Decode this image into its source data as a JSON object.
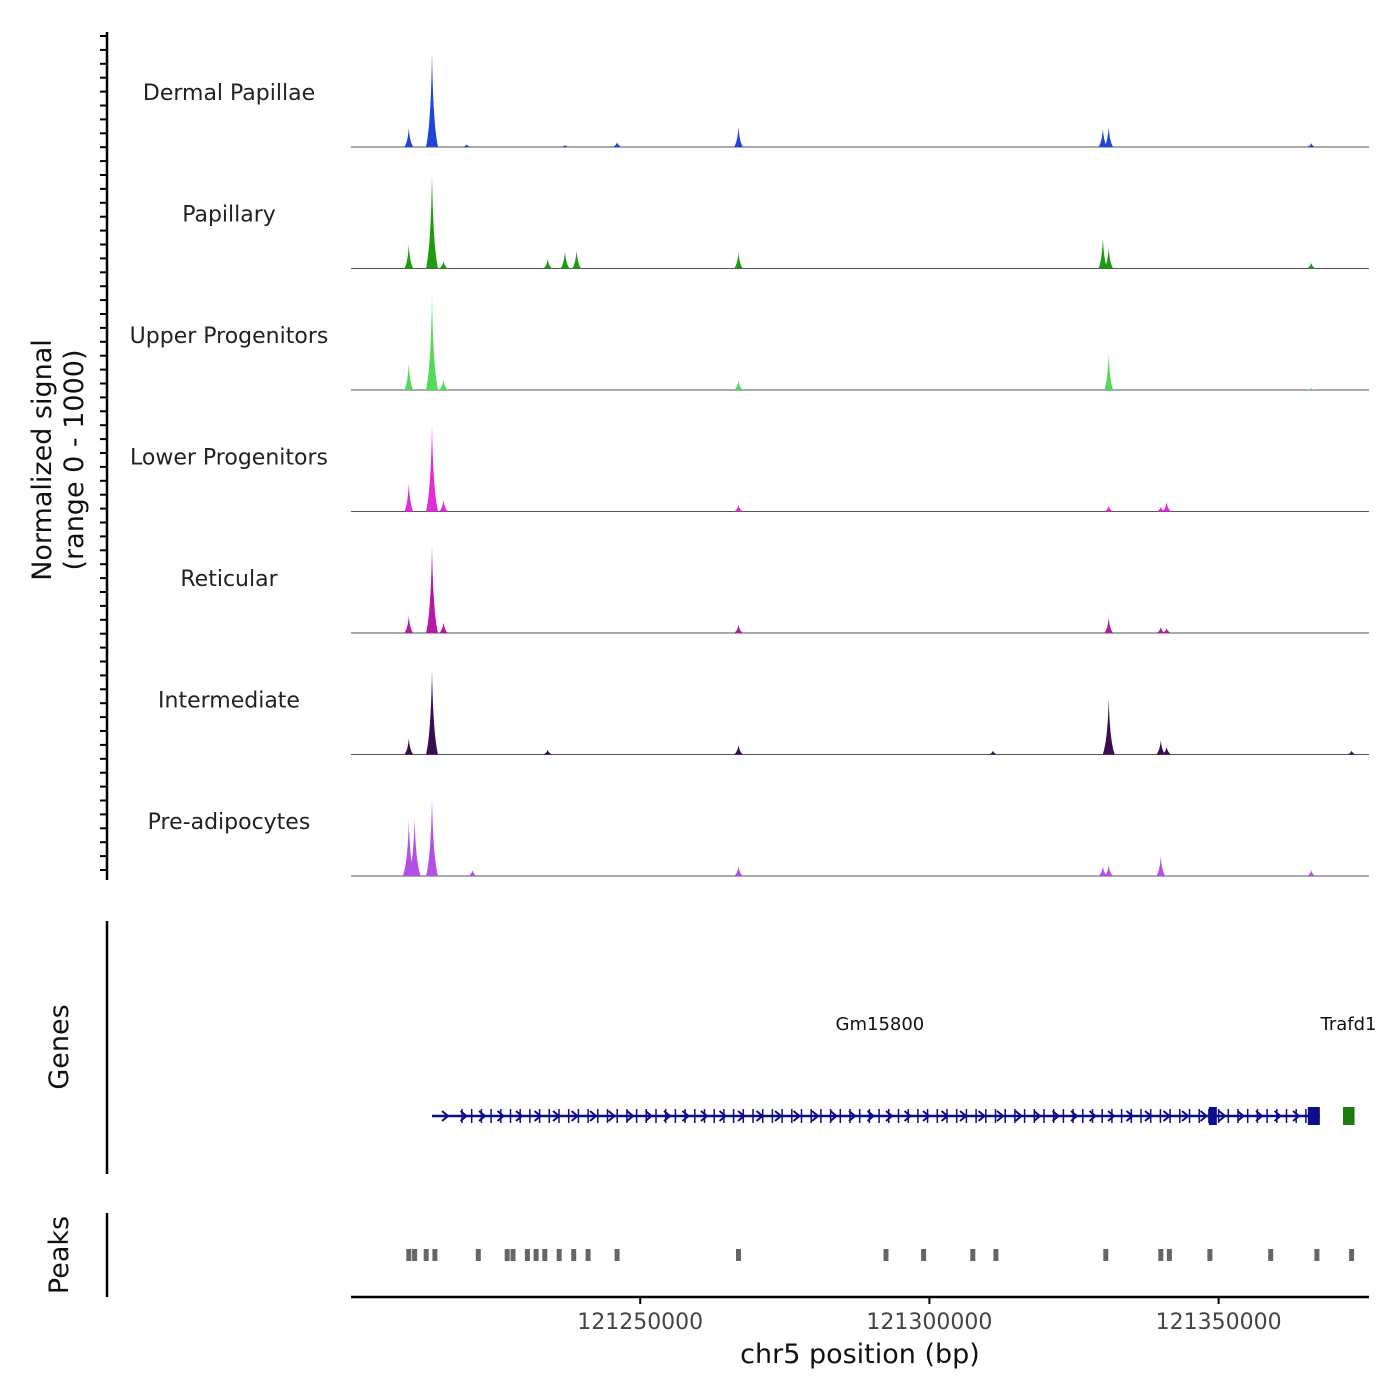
{
  "chart_data": {
    "type": "area",
    "title": "",
    "region": {
      "chromosome": "chr5",
      "start": 121200000,
      "end": 121376000
    },
    "xlabel": "chr5 position (bp)",
    "ylabel_line1": "Normalized signal",
    "ylabel_line2": "(range 0 - 1000)",
    "ylim": [
      0,
      1000
    ],
    "x_ticks": [
      {
        "value": 121250000,
        "label": "121250000"
      },
      {
        "value": 121300000,
        "label": "121300000"
      },
      {
        "value": 121350000,
        "label": "121350000"
      }
    ],
    "series": [
      {
        "name": "Dermal Papillae",
        "color": "#1f45d6",
        "peaks": [
          [
            121210000,
            200
          ],
          [
            121214000,
            1000
          ],
          [
            121220000,
            30
          ],
          [
            121237000,
            20
          ],
          [
            121246000,
            50
          ],
          [
            121267000,
            210
          ],
          [
            121330000,
            190
          ],
          [
            121331000,
            210
          ],
          [
            121366000,
            40
          ]
        ]
      },
      {
        "name": "Papillary",
        "color": "#1e9b12",
        "peaks": [
          [
            121210000,
            250
          ],
          [
            121214000,
            1000
          ],
          [
            121216000,
            80
          ],
          [
            121234000,
            100
          ],
          [
            121237000,
            180
          ],
          [
            121239000,
            190
          ],
          [
            121267000,
            170
          ],
          [
            121330000,
            320
          ],
          [
            121331000,
            220
          ],
          [
            121366000,
            60
          ]
        ]
      },
      {
        "name": "Upper Progenitors",
        "color": "#55d85c",
        "peaks": [
          [
            121210000,
            280
          ],
          [
            121214000,
            1000
          ],
          [
            121216000,
            110
          ],
          [
            121267000,
            100
          ],
          [
            121331000,
            380
          ],
          [
            121366000,
            20
          ]
        ]
      },
      {
        "name": "Lower Progenitors",
        "color": "#e22bd9",
        "peaks": [
          [
            121210000,
            300
          ],
          [
            121214000,
            920
          ],
          [
            121216000,
            120
          ],
          [
            121267000,
            70
          ],
          [
            121331000,
            60
          ],
          [
            121340000,
            50
          ],
          [
            121341000,
            100
          ]
        ]
      },
      {
        "name": "Reticular",
        "color": "#b51aa6",
        "peaks": [
          [
            121210000,
            180
          ],
          [
            121214000,
            920
          ],
          [
            121216000,
            110
          ],
          [
            121267000,
            90
          ],
          [
            121331000,
            160
          ],
          [
            121340000,
            60
          ],
          [
            121341000,
            50
          ]
        ]
      },
      {
        "name": "Intermediate",
        "color": "#3a0d52",
        "peaks": [
          [
            121210000,
            170
          ],
          [
            121214000,
            900
          ],
          [
            121234000,
            50
          ],
          [
            121267000,
            100
          ],
          [
            121311000,
            40
          ],
          [
            121331000,
            590
          ],
          [
            121340000,
            150
          ],
          [
            121341000,
            80
          ],
          [
            121373000,
            40
          ]
        ]
      },
      {
        "name": "Pre-adipocytes",
        "color": "#b44fe6",
        "peaks": [
          [
            121210000,
            580
          ],
          [
            121211000,
            610
          ],
          [
            121214000,
            830
          ],
          [
            121221000,
            60
          ],
          [
            121267000,
            100
          ],
          [
            121330000,
            100
          ],
          [
            121331000,
            110
          ],
          [
            121340000,
            210
          ],
          [
            121366000,
            60
          ]
        ]
      }
    ],
    "genes": {
      "title": "Genes",
      "items": [
        {
          "name": "Gm15800",
          "start": 121214000,
          "end": 121367500,
          "strand": "+",
          "color": "#0d0d8a"
        },
        {
          "name": "Trafd1",
          "start": 121371500,
          "end": 121373500,
          "strand": "+",
          "color": "#1f7a12"
        }
      ]
    },
    "peaks_track": {
      "title": "Peaks",
      "color": "#666666",
      "regions": [
        121210000,
        121211000,
        121213000,
        121214500,
        121222000,
        121227000,
        121228000,
        121230500,
        121232000,
        121233500,
        121236000,
        121238500,
        121241000,
        121246000,
        121267000,
        121292500,
        121299000,
        121307500,
        121311500,
        121330500,
        121340000,
        121341500,
        121348500,
        121359000,
        121367000,
        121373000
      ]
    }
  }
}
